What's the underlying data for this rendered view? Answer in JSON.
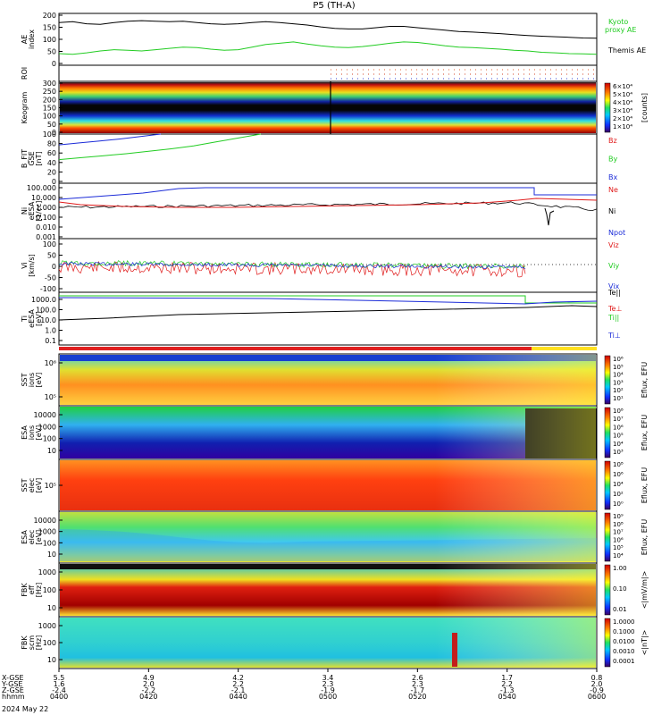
{
  "title": "P5 (TH-A)",
  "colors": {
    "black": "#000000",
    "green": "#22cc22",
    "blue": "#1c2cd8",
    "red": "#e01b1b"
  },
  "chart_data": [
    {
      "type": "line",
      "panel": "ae",
      "ylabel": "AE index",
      "ylim": [
        0,
        200
      ],
      "yticks": [
        "200",
        "150",
        "100",
        "50",
        "0"
      ],
      "series": [
        {
          "name": "Kyoto proxy AE",
          "color": "#22cc22",
          "values": [
            45,
            42,
            48,
            55,
            60,
            58,
            55,
            60,
            65,
            70,
            68,
            62,
            58,
            60,
            70,
            80,
            85,
            90,
            82,
            75,
            70,
            68,
            72,
            78,
            85,
            90,
            88,
            82,
            75,
            70,
            68,
            65,
            62,
            58,
            55,
            50,
            48,
            45,
            44,
            42
          ]
        },
        {
          "name": "Themis AE",
          "color": "#000000",
          "values": [
            165,
            168,
            160,
            158,
            165,
            170,
            172,
            170,
            168,
            170,
            165,
            160,
            158,
            160,
            165,
            168,
            165,
            160,
            155,
            148,
            142,
            140,
            140,
            145,
            150,
            150,
            145,
            140,
            135,
            130,
            128,
            125,
            122,
            118,
            115,
            112,
            110,
            108,
            105,
            104
          ]
        }
      ],
      "legend": [
        "Kyoto",
        "proxy AE",
        "Themis AE"
      ]
    },
    {
      "type": "line",
      "panel": "roi",
      "ylabel": "ROI"
    },
    {
      "type": "heatmap",
      "panel": "keogram",
      "ylabel": "Keogram",
      "ylim": [
        0,
        300
      ],
      "yticks": [
        "300",
        "250",
        "200",
        "150",
        "100",
        "50",
        "0"
      ],
      "colorbar": {
        "ticks": [
          "6×10⁴",
          "5×10⁴",
          "4×10⁴",
          "3×10⁴",
          "2×10⁴",
          "1×10⁴"
        ],
        "label": "[counts]"
      }
    },
    {
      "type": "line",
      "panel": "bfit",
      "ylabel": "B_FIT GSE [nT]",
      "ylim": [
        0,
        100
      ],
      "yticks": [
        "100",
        "80",
        "60",
        "40",
        "20",
        "0"
      ],
      "series": [
        {
          "name": "Bz",
          "color": "#e01b1b",
          "values": []
        },
        {
          "name": "By",
          "color": "#22cc22",
          "values": [
            48,
            52,
            56,
            60,
            65,
            70,
            76,
            84,
            92,
            100
          ]
        },
        {
          "name": "Bx",
          "color": "#1c2cd8",
          "values": [
            78,
            82,
            86,
            90,
            95,
            100
          ]
        }
      ]
    },
    {
      "type": "line",
      "panel": "density",
      "yscale": "log",
      "ylabel": "Ni eESA [1/cc]",
      "yticks": [
        "100.000",
        "10.000",
        "1.000",
        "0.100",
        "0.010",
        "0.001"
      ],
      "series": [
        {
          "name": "Ne",
          "color": "#e01b1b"
        },
        {
          "name": "Ni",
          "color": "#000000"
        },
        {
          "name": "Npot",
          "color": "#1c2cd8"
        }
      ]
    },
    {
      "type": "line",
      "panel": "velocity",
      "ylabel": "Vi [km/s]",
      "yticks": [
        "100",
        "50",
        "0",
        "-50",
        "-100"
      ],
      "series": [
        {
          "name": "Viz",
          "color": "#e01b1b"
        },
        {
          "name": "Viy",
          "color": "#22cc22"
        },
        {
          "name": "Vix",
          "color": "#1c2cd8"
        }
      ]
    },
    {
      "type": "line",
      "panel": "temperature",
      "yscale": "log",
      "ylabel": "Ti eESA [eV]",
      "yticks": [
        "1000.0",
        "100.0",
        "10.0",
        "1.0",
        "0.1"
      ],
      "series": [
        {
          "name": "Te||",
          "color": "#000000"
        },
        {
          "name": "Te⊥",
          "color": "#e01b1b"
        },
        {
          "name": "Ti||",
          "color": "#22cc22"
        },
        {
          "name": "Ti⊥",
          "color": "#1c2cd8"
        }
      ]
    },
    {
      "type": "heatmap",
      "panel": "sst-ion",
      "ylabel": "SST ions [eV]",
      "yscale": "log",
      "yticks": [
        "10⁶",
        "10⁵"
      ],
      "colorbar": {
        "ticks": [
          "10⁶",
          "10⁵",
          "10⁴",
          "10³",
          "10²",
          "10¹"
        ],
        "label": "Eflux, EFU"
      }
    },
    {
      "type": "heatmap",
      "panel": "esa-ion",
      "ylabel": "ESA ions [eV]",
      "yscale": "log",
      "yticks": [
        "10000",
        "1000",
        "100",
        "10"
      ],
      "colorbar": {
        "ticks": [
          "10⁸",
          "10⁷",
          "10⁶",
          "10⁵",
          "10⁴",
          "10³"
        ],
        "label": "Eflux, EFU"
      }
    },
    {
      "type": "heatmap",
      "panel": "sst-elec",
      "ylabel": "SST elec [eV]",
      "yscale": "log",
      "yticks": [
        "10⁵"
      ],
      "colorbar": {
        "ticks": [
          "10⁸",
          "10⁶",
          "10⁴",
          "10²",
          "10⁰"
        ],
        "label": "Eflux, EFU"
      }
    },
    {
      "type": "heatmap",
      "panel": "esa-elec",
      "ylabel": "ESA elec [eV]",
      "yscale": "log",
      "yticks": [
        "10000",
        "1000",
        "100",
        "10"
      ],
      "colorbar": {
        "ticks": [
          "10⁹",
          "10⁸",
          "10⁷",
          "10⁶",
          "10⁵",
          "10⁴"
        ],
        "label": "Eflux, EFU"
      }
    },
    {
      "type": "heatmap",
      "panel": "fbk-e",
      "ylabel": "FBK eff [Hz]",
      "yscale": "log",
      "yticks": [
        "1000",
        "100",
        "10"
      ],
      "colorbar": {
        "ticks": [
          "1.00",
          "0.10",
          "0.01"
        ],
        "label": "<|mV/m|>"
      }
    },
    {
      "type": "heatmap",
      "panel": "fbk-b",
      "ylabel": "FBK scm [Hz]",
      "yscale": "log",
      "yticks": [
        "1000",
        "100",
        "10"
      ],
      "colorbar": {
        "ticks": [
          "1.0000",
          "0.1000",
          "0.0100",
          "0.0010",
          "0.0001"
        ],
        "label": "<|nT|>"
      }
    }
  ],
  "xaxis": {
    "row_labels": [
      "X-GSE",
      "Y-GSE",
      "Z-GSE",
      "hhmm",
      "2024 May 22"
    ],
    "ticks": [
      {
        "x": "5.5",
        "y": "1.6",
        "z": "-2.4",
        "t": "0400"
      },
      {
        "x": "4.9",
        "y": "2.0",
        "z": "-2.2",
        "t": "0420"
      },
      {
        "x": "4.2",
        "y": "2.2",
        "z": "-2.1",
        "t": "0440"
      },
      {
        "x": "3.4",
        "y": "2.3",
        "z": "-1.9",
        "t": "0500"
      },
      {
        "x": "2.6",
        "y": "2.3",
        "z": "-1.7",
        "t": "0520"
      },
      {
        "x": "1.7",
        "y": "2.2",
        "z": "-1.3",
        "t": "0540"
      },
      {
        "x": "0.8",
        "y": "2.0",
        "z": "-0.9",
        "t": "0600"
      }
    ]
  }
}
